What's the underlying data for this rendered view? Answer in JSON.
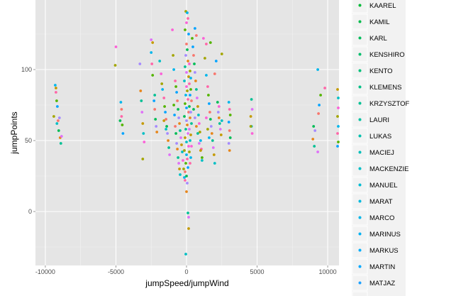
{
  "chart_data": {
    "type": "scatter",
    "xlabel": "jumpSpeed/jumpWind",
    "ylabel": "jumpPoints",
    "xlim": [
      -10700,
      10800
    ],
    "ylim": [
      -38,
      149
    ],
    "x_ticks": [
      -10000,
      -5000,
      0,
      5000,
      10000
    ],
    "y_ticks": [
      0,
      50,
      100
    ],
    "grid": true,
    "legend_position": "right",
    "legend": [
      {
        "name": "KAAREL",
        "color": "#00ba38"
      },
      {
        "name": "KAMIL",
        "color": "#00bc4c"
      },
      {
        "name": "KARL",
        "color": "#00bd5c"
      },
      {
        "name": "KENSHIRO",
        "color": "#00be6c"
      },
      {
        "name": "KENTO",
        "color": "#00c07a"
      },
      {
        "name": "KLEMENS",
        "color": "#00c087"
      },
      {
        "name": "KRZYSZTOF",
        "color": "#00c194"
      },
      {
        "name": "LAURI",
        "color": "#00c1a1"
      },
      {
        "name": "LUKAS",
        "color": "#00c0ae"
      },
      {
        "name": "MACIEJ",
        "color": "#00bfba"
      },
      {
        "name": "MACKENZIE",
        "color": "#00bec6"
      },
      {
        "name": "MANUEL",
        "color": "#00bcd2"
      },
      {
        "name": "MARAT",
        "color": "#00b9de"
      },
      {
        "name": "MARCO",
        "color": "#00b6e9"
      },
      {
        "name": "MARINUS",
        "color": "#00b2f3"
      },
      {
        "name": "MARKUS",
        "color": "#00adfa"
      },
      {
        "name": "MARTIN",
        "color": "#00a8ff"
      },
      {
        "name": "MATJAZ",
        "color": "#1ea1ff"
      }
    ],
    "series_colors": [
      "#f8766d",
      "#e7861b",
      "#c49a00",
      "#a3a500",
      "#53b400",
      "#00bc56",
      "#00c094",
      "#00bfc4",
      "#00b6eb",
      "#06a4ff",
      "#a58aff",
      "#df70f8",
      "#fb61d7",
      "#ff66a8"
    ],
    "points": [
      [
        -9400,
        67
      ],
      [
        -9300,
        89
      ],
      [
        -9250,
        84
      ],
      [
        -9200,
        78
      ],
      [
        -9150,
        74
      ],
      [
        -9100,
        64
      ],
      [
        -9050,
        57
      ],
      [
        -9000,
        66
      ],
      [
        -8950,
        52
      ],
      [
        -8900,
        48
      ],
      [
        -8850,
        53
      ],
      [
        -9250,
        87
      ],
      [
        -9180,
        62
      ],
      [
        -5000,
        116
      ],
      [
        -5050,
        103
      ],
      [
        -4650,
        77
      ],
      [
        -4600,
        67
      ],
      [
        -4550,
        61
      ],
      [
        -4500,
        55
      ],
      [
        -4600,
        72
      ],
      [
        -4700,
        64
      ],
      [
        -3300,
        104
      ],
      [
        -3250,
        85
      ],
      [
        -3200,
        78
      ],
      [
        -3150,
        70
      ],
      [
        -3100,
        62
      ],
      [
        -3050,
        55
      ],
      [
        -3000,
        49
      ],
      [
        -3100,
        37
      ],
      [
        -2500,
        112
      ],
      [
        -2450,
        104
      ],
      [
        -2400,
        96
      ],
      [
        -2300,
        78
      ],
      [
        -2250,
        72
      ],
      [
        -2200,
        65
      ],
      [
        -2150,
        60
      ],
      [
        -2100,
        56
      ],
      [
        -2250,
        82
      ],
      [
        -2500,
        121
      ],
      [
        -2400,
        119
      ],
      [
        -1900,
        106
      ],
      [
        -1800,
        97
      ],
      [
        -1750,
        90
      ],
      [
        -1700,
        86
      ],
      [
        -1600,
        80
      ],
      [
        -1550,
        74
      ],
      [
        -1500,
        70
      ],
      [
        -1450,
        65
      ],
      [
        -1400,
        60
      ],
      [
        -1350,
        55
      ],
      [
        -1300,
        50
      ],
      [
        -1250,
        45
      ],
      [
        -1200,
        40
      ],
      [
        -1600,
        64
      ],
      [
        -1450,
        58
      ],
      [
        -1000,
        128
      ],
      [
        -950,
        110
      ],
      [
        -900,
        100
      ],
      [
        -800,
        92
      ],
      [
        -750,
        88
      ],
      [
        -700,
        84
      ],
      [
        -650,
        78
      ],
      [
        -600,
        72
      ],
      [
        -550,
        66
      ],
      [
        -500,
        62
      ],
      [
        -450,
        57
      ],
      [
        -400,
        52
      ],
      [
        -350,
        47
      ],
      [
        -300,
        42
      ],
      [
        -250,
        36
      ],
      [
        -200,
        30
      ],
      [
        -150,
        24
      ],
      [
        -100,
        22
      ],
      [
        -900,
        75
      ],
      [
        -850,
        68
      ],
      [
        -800,
        60
      ],
      [
        -750,
        55
      ],
      [
        -700,
        48
      ],
      [
        -650,
        44
      ],
      [
        -600,
        38
      ],
      [
        -550,
        34
      ],
      [
        -500,
        30
      ],
      [
        -450,
        26
      ],
      [
        0,
        133
      ],
      [
        -50,
        141
      ],
      [
        50,
        140
      ],
      [
        100,
        136
      ],
      [
        -100,
        128
      ],
      [
        150,
        125
      ],
      [
        0,
        118
      ],
      [
        50,
        114
      ],
      [
        -50,
        110
      ],
      [
        100,
        106
      ],
      [
        -100,
        102
      ],
      [
        0,
        98
      ],
      [
        150,
        95
      ],
      [
        -150,
        92
      ],
      [
        0,
        88
      ],
      [
        50,
        85
      ],
      [
        -50,
        82
      ],
      [
        100,
        79
      ],
      [
        -100,
        76
      ],
      [
        0,
        73
      ],
      [
        150,
        70
      ],
      [
        -150,
        67
      ],
      [
        0,
        64
      ],
      [
        50,
        61
      ],
      [
        -50,
        58
      ],
      [
        100,
        55
      ],
      [
        -100,
        52
      ],
      [
        0,
        49
      ],
      [
        150,
        46
      ],
      [
        -150,
        43
      ],
      [
        0,
        40
      ],
      [
        50,
        37
      ],
      [
        -50,
        34
      ],
      [
        100,
        31
      ],
      [
        -100,
        28
      ],
      [
        0,
        25
      ],
      [
        50,
        20
      ],
      [
        0,
        14
      ],
      [
        100,
        -1
      ],
      [
        150,
        -4
      ],
      [
        150,
        -12
      ],
      [
        -50,
        -30
      ],
      [
        200,
        104
      ],
      [
        250,
        99
      ],
      [
        300,
        94
      ],
      [
        200,
        90
      ],
      [
        300,
        86
      ],
      [
        250,
        82
      ],
      [
        350,
        78
      ],
      [
        200,
        74
      ],
      [
        300,
        70
      ],
      [
        250,
        66
      ],
      [
        350,
        62
      ],
      [
        200,
        58
      ],
      [
        300,
        54
      ],
      [
        250,
        50
      ],
      [
        350,
        46
      ],
      [
        200,
        42
      ],
      [
        300,
        38
      ],
      [
        250,
        34
      ],
      [
        400,
        122
      ],
      [
        450,
        116
      ],
      [
        500,
        110
      ],
      [
        550,
        104
      ],
      [
        600,
        98
      ],
      [
        650,
        92
      ],
      [
        700,
        86
      ],
      [
        750,
        80
      ],
      [
        800,
        74
      ],
      [
        850,
        68
      ],
      [
        900,
        62
      ],
      [
        950,
        56
      ],
      [
        1000,
        50
      ],
      [
        1050,
        44
      ],
      [
        1100,
        38
      ],
      [
        600,
        129
      ],
      [
        700,
        124
      ],
      [
        500,
        72
      ],
      [
        600,
        66
      ],
      [
        700,
        60
      ],
      [
        800,
        55
      ],
      [
        900,
        48
      ],
      [
        1000,
        43
      ],
      [
        1100,
        36
      ],
      [
        1200,
        122
      ],
      [
        1300,
        108
      ],
      [
        1400,
        96
      ],
      [
        1500,
        88
      ],
      [
        1550,
        82
      ],
      [
        1600,
        76
      ],
      [
        1650,
        70
      ],
      [
        1700,
        65
      ],
      [
        1750,
        60
      ],
      [
        1800,
        55
      ],
      [
        1850,
        50
      ],
      [
        1900,
        45
      ],
      [
        1950,
        40
      ],
      [
        2000,
        34
      ],
      [
        1400,
        66
      ],
      [
        1500,
        58
      ],
      [
        1600,
        52
      ],
      [
        1400,
        118
      ],
      [
        1700,
        119
      ],
      [
        2100,
        106
      ],
      [
        2000,
        97
      ],
      [
        2200,
        77
      ],
      [
        2250,
        70
      ],
      [
        2300,
        66
      ],
      [
        2350,
        62
      ],
      [
        2400,
        58
      ],
      [
        2450,
        54
      ],
      [
        2500,
        64
      ],
      [
        2300,
        74
      ],
      [
        2500,
        111
      ],
      [
        3000,
        77
      ],
      [
        3050,
        72
      ],
      [
        3100,
        68
      ],
      [
        3000,
        63
      ],
      [
        3050,
        57
      ],
      [
        3100,
        52
      ],
      [
        3000,
        48
      ],
      [
        3050,
        43
      ],
      [
        4600,
        79
      ],
      [
        4650,
        72
      ],
      [
        4550,
        67
      ],
      [
        4600,
        60
      ],
      [
        4650,
        55
      ],
      [
        4550,
        60
      ],
      [
        9300,
        100
      ],
      [
        9800,
        87
      ],
      [
        9500,
        82
      ],
      [
        9400,
        75
      ],
      [
        9350,
        69
      ],
      [
        9000,
        60
      ],
      [
        9100,
        57
      ],
      [
        8950,
        51
      ],
      [
        9050,
        46
      ],
      [
        9300,
        42
      ],
      [
        10700,
        86
      ],
      [
        10750,
        80
      ],
      [
        10750,
        73
      ],
      [
        10700,
        67
      ],
      [
        10750,
        60
      ],
      [
        10700,
        55
      ],
      [
        10750,
        49
      ],
      [
        10700,
        46
      ]
    ]
  }
}
